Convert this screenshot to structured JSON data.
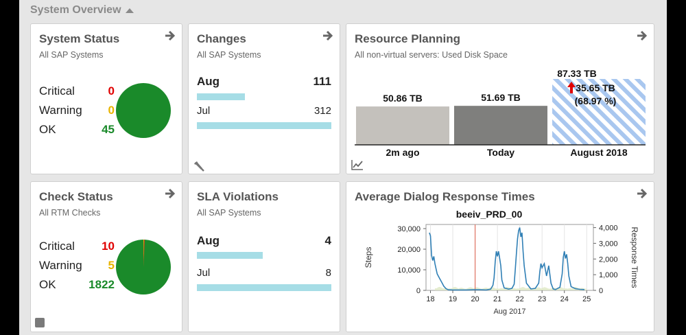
{
  "section": {
    "title": "System Overview"
  },
  "system_status": {
    "title": "System Status",
    "subtitle": "All SAP Systems",
    "rows": [
      {
        "label": "Critical",
        "value": "0",
        "color": "#e00000"
      },
      {
        "label": "Warning",
        "value": "0",
        "color": "#e8b400"
      },
      {
        "label": "OK",
        "value": "45",
        "color": "#1a8a2a"
      }
    ],
    "pie_color": "#1a8a2a"
  },
  "changes": {
    "title": "Changes",
    "subtitle": "All SAP Systems",
    "rows": [
      {
        "label": "Aug",
        "value": "111",
        "bold": true,
        "fraction": 0.356
      },
      {
        "label": "Jul",
        "value": "312",
        "bold": false,
        "fraction": 1.0
      }
    ]
  },
  "resource_planning": {
    "title": "Resource Planning",
    "subtitle": "All non-virtual servers: Used Disk Space",
    "forecast_label_1": "87.33 TB",
    "forecast_label_2": "35.65 TB",
    "forecast_label_3": "(68.97 %)"
  },
  "check_status": {
    "title": "Check Status",
    "subtitle": "All RTM Checks",
    "rows": [
      {
        "label": "Critical",
        "value": "10",
        "color": "#e00000"
      },
      {
        "label": "Warning",
        "value": "5",
        "color": "#e8b400"
      },
      {
        "label": "OK",
        "value": "1822",
        "color": "#1a8a2a"
      }
    ]
  },
  "sla_violations": {
    "title": "SLA Violations",
    "subtitle": "All SAP Systems",
    "rows": [
      {
        "label": "Aug",
        "value": "4",
        "bold": true,
        "fraction": 0.49
      },
      {
        "label": "Jul",
        "value": "8",
        "bold": false,
        "fraction": 1.0
      }
    ]
  },
  "avg_dialog": {
    "title": "Average Dialog Response Times"
  },
  "chart_data": [
    {
      "type": "bar",
      "categories": [
        "2m ago",
        "Today",
        "August 2018"
      ],
      "values": [
        50.86,
        51.69,
        87.33
      ],
      "data_labels": [
        "50.86 TB",
        "51.69 TB",
        "87.33 TB"
      ],
      "colors": [
        "#c4c1bc",
        "#7f7f7d",
        "hatched-blue"
      ],
      "ylim": [
        0,
        100
      ]
    },
    {
      "type": "line",
      "title": "beeiv_PRD_00",
      "xlabel": "Aug 2017",
      "ylabel": "Steps",
      "y2label": "Response Times",
      "x_ticks": [
        "18",
        "19",
        "20",
        "21",
        "22",
        "23",
        "24",
        "25"
      ],
      "y_ticks": [
        "0",
        "10,000",
        "20,000",
        "30,000"
      ],
      "y2_ticks": [
        "0",
        "1,000",
        "2,000",
        "3,000",
        "4,000"
      ],
      "ylim": [
        0,
        32000
      ],
      "y2lim": [
        0,
        4200
      ],
      "marker_x": 20,
      "series": [
        {
          "x": [
            17.95,
            18.0,
            18.05,
            18.1,
            18.15,
            18.2,
            18.3,
            18.4,
            18.5,
            18.6,
            18.7,
            18.8,
            19.0,
            19.3,
            19.6,
            19.9,
            20.2,
            20.5,
            20.7,
            20.8,
            20.85,
            20.9,
            20.95,
            21.0,
            21.05,
            21.1,
            21.15,
            21.2,
            21.3,
            21.5,
            21.65,
            21.75,
            21.8,
            21.85,
            21.9,
            21.95,
            22.0,
            22.05,
            22.1,
            22.15,
            22.2,
            22.3,
            22.5,
            22.7,
            22.85,
            22.9,
            22.95,
            23.0,
            23.1,
            23.2,
            23.3,
            23.4,
            23.5,
            23.6,
            23.8,
            23.9,
            23.95,
            24.0,
            24.05,
            24.1,
            24.15,
            24.2,
            24.3,
            24.5,
            24.7,
            24.9
          ],
          "y": [
            28000,
            26500,
            17000,
            14500,
            16500,
            13000,
            8000,
            6000,
            4000,
            2000,
            800,
            300,
            200,
            200,
            200,
            300,
            300,
            200,
            600,
            2500,
            6000,
            14000,
            19000,
            16500,
            19000,
            15500,
            12000,
            5000,
            1200,
            600,
            1000,
            3000,
            10000,
            18000,
            25000,
            29000,
            30500,
            26000,
            28000,
            19000,
            12000,
            3500,
            700,
            1000,
            3500,
            9000,
            13000,
            11000,
            13000,
            7000,
            12000,
            3500,
            700,
            400,
            1500,
            8000,
            16000,
            19000,
            15500,
            17500,
            13000,
            7000,
            1800,
            800,
            500,
            400
          ]
        }
      ]
    }
  ]
}
